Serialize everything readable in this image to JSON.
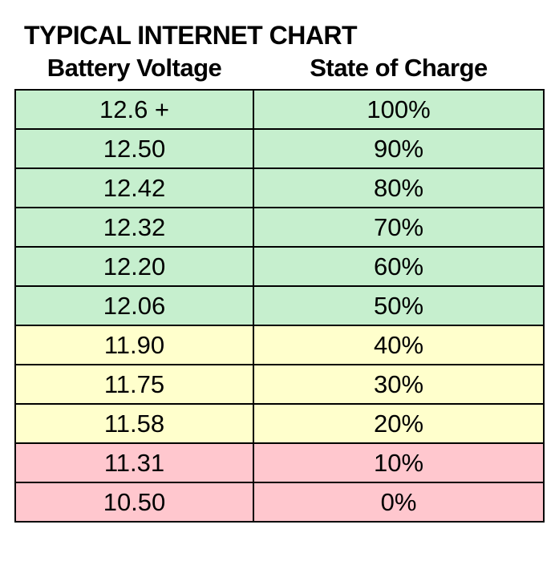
{
  "title": "TYPICAL INTERNET CHART",
  "colors": {
    "green": "#C6EFCE",
    "yellow": "#FFFFCC",
    "pink": "#FFC7CE",
    "border": "#000000",
    "text": "#000000",
    "background": "#FFFFFF"
  },
  "chart_data": {
    "type": "table",
    "title": "TYPICAL INTERNET CHART",
    "columns": [
      "Battery Voltage",
      "State of Charge"
    ],
    "rows": [
      {
        "voltage": "12.6 +",
        "state_of_charge": "100%",
        "band": "green"
      },
      {
        "voltage": "12.50",
        "state_of_charge": "90%",
        "band": "green"
      },
      {
        "voltage": "12.42",
        "state_of_charge": "80%",
        "band": "green"
      },
      {
        "voltage": "12.32",
        "state_of_charge": "70%",
        "band": "green"
      },
      {
        "voltage": "12.20",
        "state_of_charge": "60%",
        "band": "green"
      },
      {
        "voltage": "12.06",
        "state_of_charge": "50%",
        "band": "green"
      },
      {
        "voltage": "11.90",
        "state_of_charge": "40%",
        "band": "yellow"
      },
      {
        "voltage": "11.75",
        "state_of_charge": "30%",
        "band": "yellow"
      },
      {
        "voltage": "11.58",
        "state_of_charge": "20%",
        "band": "yellow"
      },
      {
        "voltage": "11.31",
        "state_of_charge": "10%",
        "band": "pink"
      },
      {
        "voltage": "10.50",
        "state_of_charge": "0%",
        "band": "pink"
      }
    ]
  }
}
